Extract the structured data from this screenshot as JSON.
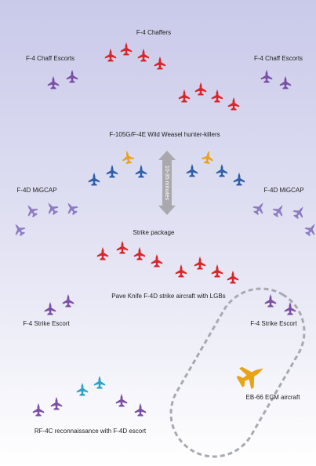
{
  "labels": {
    "chaffers": "F-4 Chaffers",
    "chaff_escorts_left": "F-4 Chaff Escorts",
    "chaff_escorts_right": "F-4 Chaff Escorts",
    "wild_weasel": "F-105G/F-4E Wild Weasel hunter-killers",
    "interval": "10-35 minutes",
    "migcap_left": "F-4D MiGCAP",
    "migcap_right": "F-4D MiGCAP",
    "strike_package": "Strike package",
    "pave_knife": "Pave Knife F-4D strike aircraft with LGBs",
    "strike_escort_left": "F-4 Strike Escort",
    "strike_escort_right": "F-4 Strike Escort",
    "ecm": "EB-66 ECM aircraft",
    "recon": "RF-4C reconnaissance with F-4D escort"
  }
}
